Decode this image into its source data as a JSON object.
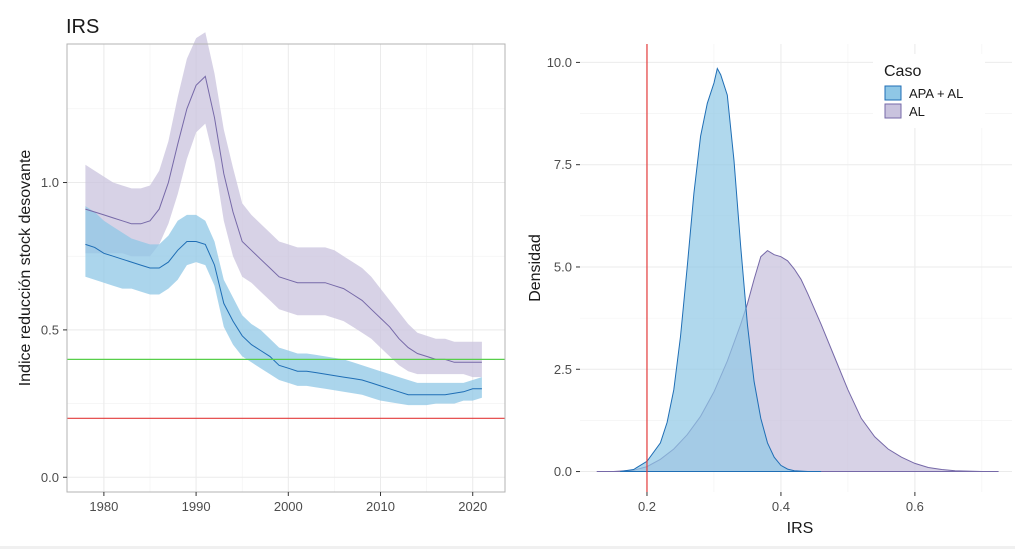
{
  "colors": {
    "series_a_fill": "#8fc7e6",
    "series_a_line": "#1f6eb5",
    "series_b_fill": "#c9c3de",
    "series_b_line": "#7669a8",
    "red": "#e33b3b",
    "green": "#58cf4a",
    "grid": "#ebebeb",
    "axis": "#b3b3b3"
  },
  "chart_data": [
    {
      "type": "line",
      "title": "IRS",
      "xlabel": "",
      "ylabel": "Indice reducción stock desovante",
      "xlim": [
        1976,
        2023.5
      ],
      "ylim": [
        -0.05,
        1.47
      ],
      "xticks": [
        1980,
        1990,
        2000,
        2010,
        2020
      ],
      "xtick_labels": [
        "1980",
        "1990",
        "2000",
        "2010",
        "2020"
      ],
      "yticks": [
        0.0,
        0.5,
        1.0
      ],
      "ytick_labels": [
        "0.0",
        "0.5",
        "1.0"
      ],
      "grid": true,
      "hlines": [
        {
          "y": 0.2,
          "color": "red"
        },
        {
          "y": 0.4,
          "color": "green"
        }
      ],
      "x": [
        1978,
        1979,
        1980,
        1981,
        1982,
        1983,
        1984,
        1985,
        1986,
        1987,
        1988,
        1989,
        1990,
        1991,
        1992,
        1993,
        1994,
        1995,
        1996,
        1997,
        1998,
        1999,
        2000,
        2001,
        2002,
        2003,
        2004,
        2005,
        2006,
        2007,
        2008,
        2009,
        2010,
        2011,
        2012,
        2013,
        2014,
        2015,
        2016,
        2017,
        2018,
        2019,
        2020,
        2021
      ],
      "series": [
        {
          "key": "b",
          "mean": [
            0.91,
            0.9,
            0.89,
            0.88,
            0.87,
            0.86,
            0.86,
            0.87,
            0.91,
            1.0,
            1.13,
            1.25,
            1.33,
            1.36,
            1.22,
            1.03,
            0.9,
            0.8,
            0.77,
            0.74,
            0.71,
            0.68,
            0.67,
            0.66,
            0.66,
            0.66,
            0.66,
            0.65,
            0.64,
            0.62,
            0.6,
            0.57,
            0.54,
            0.51,
            0.47,
            0.44,
            0.42,
            0.41,
            0.4,
            0.4,
            0.39,
            0.39,
            0.39,
            0.39
          ],
          "lower": [
            0.76,
            0.76,
            0.76,
            0.76,
            0.76,
            0.75,
            0.75,
            0.75,
            0.79,
            0.86,
            0.96,
            1.08,
            1.17,
            1.2,
            1.07,
            0.87,
            0.75,
            0.68,
            0.66,
            0.63,
            0.6,
            0.57,
            0.56,
            0.55,
            0.55,
            0.55,
            0.55,
            0.54,
            0.53,
            0.51,
            0.49,
            0.47,
            0.44,
            0.41,
            0.38,
            0.36,
            0.35,
            0.35,
            0.35,
            0.35,
            0.35,
            0.35,
            0.34,
            0.34
          ],
          "upper": [
            1.06,
            1.04,
            1.02,
            1.0,
            0.99,
            0.98,
            0.98,
            0.99,
            1.04,
            1.14,
            1.29,
            1.42,
            1.49,
            1.51,
            1.37,
            1.18,
            1.05,
            0.93,
            0.89,
            0.86,
            0.83,
            0.8,
            0.79,
            0.78,
            0.78,
            0.78,
            0.78,
            0.77,
            0.75,
            0.73,
            0.71,
            0.68,
            0.64,
            0.6,
            0.56,
            0.52,
            0.49,
            0.48,
            0.47,
            0.47,
            0.46,
            0.46,
            0.46,
            0.46
          ]
        },
        {
          "key": "a",
          "mean": [
            0.79,
            0.78,
            0.76,
            0.75,
            0.74,
            0.73,
            0.72,
            0.71,
            0.71,
            0.73,
            0.77,
            0.8,
            0.8,
            0.79,
            0.72,
            0.59,
            0.53,
            0.48,
            0.45,
            0.43,
            0.41,
            0.38,
            0.37,
            0.36,
            0.36,
            0.355,
            0.35,
            0.345,
            0.34,
            0.335,
            0.33,
            0.32,
            0.31,
            0.3,
            0.29,
            0.28,
            0.28,
            0.28,
            0.28,
            0.28,
            0.285,
            0.29,
            0.3,
            0.3
          ],
          "lower": [
            0.68,
            0.67,
            0.66,
            0.65,
            0.64,
            0.64,
            0.63,
            0.62,
            0.62,
            0.64,
            0.67,
            0.72,
            0.73,
            0.72,
            0.65,
            0.51,
            0.45,
            0.41,
            0.39,
            0.37,
            0.35,
            0.33,
            0.32,
            0.31,
            0.31,
            0.305,
            0.3,
            0.295,
            0.29,
            0.285,
            0.28,
            0.27,
            0.26,
            0.255,
            0.25,
            0.245,
            0.245,
            0.245,
            0.25,
            0.25,
            0.25,
            0.26,
            0.26,
            0.27
          ],
          "upper": [
            0.92,
            0.9,
            0.87,
            0.85,
            0.83,
            0.81,
            0.8,
            0.79,
            0.79,
            0.82,
            0.87,
            0.89,
            0.89,
            0.87,
            0.8,
            0.67,
            0.61,
            0.55,
            0.52,
            0.5,
            0.47,
            0.44,
            0.43,
            0.42,
            0.42,
            0.415,
            0.41,
            0.405,
            0.4,
            0.39,
            0.38,
            0.37,
            0.36,
            0.35,
            0.34,
            0.33,
            0.32,
            0.32,
            0.32,
            0.32,
            0.32,
            0.32,
            0.33,
            0.34
          ]
        }
      ]
    },
    {
      "type": "area",
      "title": "",
      "xlabel": "IRS",
      "ylabel": "Densidad",
      "xlim": [
        0.1,
        0.745
      ],
      "ylim": [
        -0.5,
        10.45
      ],
      "xticks": [
        0.2,
        0.4,
        0.6
      ],
      "xtick_labels": [
        "0.2",
        "0.4",
        "0.6"
      ],
      "yticks": [
        0.0,
        2.5,
        5.0,
        7.5,
        10.0
      ],
      "ytick_labels": [
        "0.0",
        "2.5",
        "5.0",
        "7.5",
        "10.0"
      ],
      "grid": true,
      "vlines": [
        {
          "x": 0.2,
          "color": "red"
        }
      ],
      "legend": {
        "title": "Caso",
        "position": "top-right",
        "entries": [
          {
            "label": "APA + AL",
            "key": "a"
          },
          {
            "label": "AL",
            "key": "b"
          }
        ]
      },
      "series": [
        {
          "name": "AL",
          "key": "b",
          "x": [
            0.125,
            0.15,
            0.18,
            0.2,
            0.22,
            0.24,
            0.26,
            0.28,
            0.3,
            0.32,
            0.34,
            0.35,
            0.36,
            0.37,
            0.38,
            0.39,
            0.4,
            0.41,
            0.42,
            0.43,
            0.44,
            0.46,
            0.48,
            0.5,
            0.52,
            0.54,
            0.56,
            0.58,
            0.6,
            0.62,
            0.64,
            0.66,
            0.7,
            0.725
          ],
          "y": [
            0.0,
            0.0,
            0.03,
            0.12,
            0.3,
            0.55,
            0.9,
            1.35,
            1.95,
            2.7,
            3.6,
            4.1,
            4.7,
            5.25,
            5.4,
            5.3,
            5.25,
            5.15,
            4.95,
            4.7,
            4.35,
            3.6,
            2.8,
            2.0,
            1.3,
            0.85,
            0.55,
            0.35,
            0.2,
            0.1,
            0.05,
            0.02,
            0.0,
            0.0
          ]
        },
        {
          "name": "APA + AL",
          "key": "a",
          "x": [
            0.16,
            0.18,
            0.2,
            0.22,
            0.23,
            0.24,
            0.25,
            0.26,
            0.27,
            0.28,
            0.29,
            0.3,
            0.305,
            0.31,
            0.32,
            0.33,
            0.34,
            0.35,
            0.36,
            0.37,
            0.38,
            0.39,
            0.4,
            0.41,
            0.42,
            0.44,
            0.46
          ],
          "y": [
            0.0,
            0.05,
            0.25,
            0.7,
            1.2,
            2.0,
            3.3,
            5.0,
            6.8,
            8.2,
            9.0,
            9.5,
            9.85,
            9.7,
            9.2,
            7.6,
            5.5,
            3.6,
            2.2,
            1.3,
            0.7,
            0.35,
            0.15,
            0.06,
            0.02,
            0.0,
            0.0
          ]
        }
      ]
    }
  ]
}
